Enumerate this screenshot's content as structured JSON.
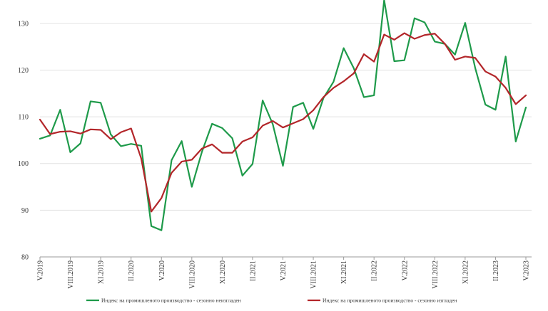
{
  "chart_data": {
    "type": "line",
    "title": "",
    "xlabel": "",
    "ylabel": "",
    "ylim": [
      80,
      135
    ],
    "yticks": [
      80,
      90,
      100,
      110,
      120,
      130
    ],
    "grid": "horizontal",
    "legend_placement": "bottom",
    "x": [
      "V.2019",
      "VI.2019",
      "VII.2019",
      "VIII.2019",
      "IX.2019",
      "X.2019",
      "XI.2019",
      "XII.2019",
      "I.2020",
      "II.2020",
      "III.2020",
      "IV.2020",
      "V.2020",
      "VI.2020",
      "VII.2020",
      "VIII.2020",
      "IX.2020",
      "X.2020",
      "XI.2020",
      "XII.2020",
      "I.2021",
      "II.2021",
      "III.2021",
      "IV.2021",
      "V.2021",
      "VI.2021",
      "VII.2021",
      "VIII.2021",
      "IX.2021",
      "X.2021",
      "XI.2021",
      "XII.2021",
      "I.2022",
      "II.2022",
      "III.2022",
      "IV.2022",
      "V.2022",
      "VI.2022",
      "VII.2022",
      "VIII.2022",
      "IX.2022",
      "X.2022",
      "XI.2022",
      "XII.2022",
      "I.2023",
      "II.2023",
      "III.2023",
      "IV.2023",
      "V.2023"
    ],
    "tick_labels": [
      "V.2019",
      "VIII.2019",
      "XI.2019",
      "II.2020",
      "V.2020",
      "VIII.2020",
      "XI.2020",
      "II.2021",
      "V.2021",
      "VIII.2021",
      "XI.2021",
      "II.2022",
      "V.2022",
      "VIII.2022",
      "XI.2022",
      "II.2023",
      "V.2023"
    ],
    "series": [
      {
        "name": "Индекс на промишленото производство - сезонно  неизгладен",
        "color": "#1e9a4a",
        "values": [
          105.3,
          106.0,
          111.5,
          102.4,
          104.3,
          113.3,
          113.0,
          106.2,
          103.7,
          104.2,
          103.8,
          86.6,
          85.7,
          100.7,
          104.8,
          95.0,
          102.5,
          108.5,
          107.6,
          105.4,
          97.4,
          99.9,
          113.5,
          108.4,
          99.5,
          112.1,
          113.0,
          107.4,
          114.0,
          117.5,
          124.7,
          120.4,
          114.2,
          114.6,
          135.0,
          121.9,
          122.1,
          131.1,
          130.2,
          126.1,
          125.6,
          123.3,
          130.1,
          120.4,
          112.6,
          111.5,
          122.9,
          104.7,
          112.0
        ]
      },
      {
        "name": "Индекс на промишленото производство - сезонно изгладен",
        "color": "#b3262a",
        "values": [
          109.4,
          106.3,
          106.8,
          106.9,
          106.4,
          107.3,
          107.2,
          105.2,
          106.7,
          107.5,
          101.1,
          89.7,
          92.6,
          98.0,
          100.4,
          100.8,
          103.2,
          104.1,
          102.3,
          102.3,
          104.7,
          105.6,
          108.1,
          109.1,
          107.7,
          108.6,
          109.5,
          111.4,
          114.2,
          116.2,
          117.6,
          119.3,
          123.4,
          121.8,
          127.6,
          126.5,
          127.9,
          126.7,
          127.5,
          127.8,
          125.6,
          122.2,
          122.9,
          122.6,
          119.7,
          118.6,
          116.2,
          112.7,
          114.6
        ]
      }
    ]
  }
}
